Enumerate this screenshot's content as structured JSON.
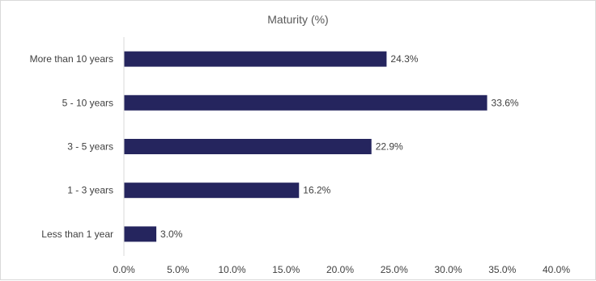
{
  "chart_data": {
    "type": "bar",
    "orientation": "horizontal",
    "title": "Maturity (%)",
    "categories": [
      "Less than 1 year",
      "1 - 3 years",
      "3 - 5 years",
      "5 - 10 years",
      "More than 10 years"
    ],
    "values": [
      3.0,
      16.2,
      22.9,
      33.6,
      24.3
    ],
    "data_labels": [
      "3.0%",
      "16.2%",
      "22.9%",
      "33.6%",
      "24.3%"
    ],
    "xlim": [
      0,
      40
    ],
    "x_ticks": [
      "0.0%",
      "5.0%",
      "10.0%",
      "15.0%",
      "20.0%",
      "25.0%",
      "30.0%",
      "35.0%",
      "40.0%"
    ],
    "grid": false,
    "legend": "none",
    "bar_color": "#25255e"
  }
}
